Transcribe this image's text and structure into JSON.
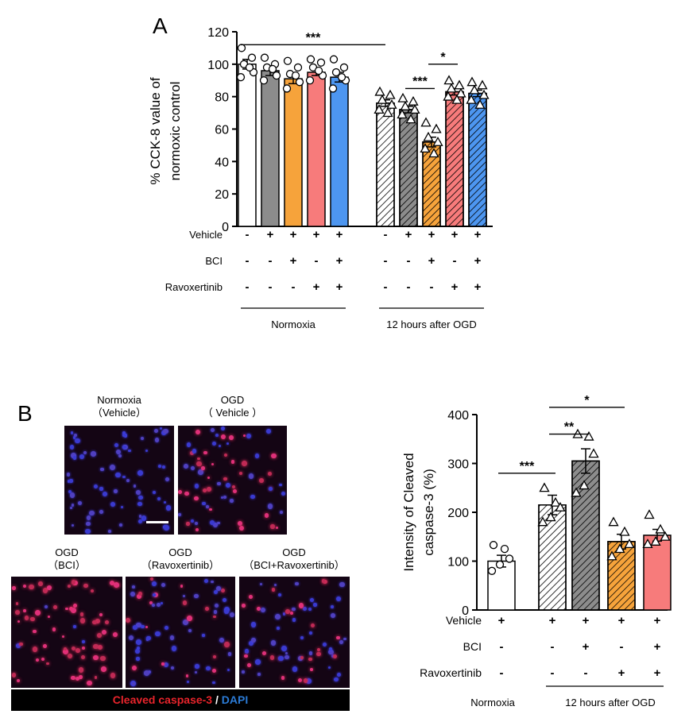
{
  "panel_labels": {
    "a": "A",
    "b": "B"
  },
  "chart_data": [
    {
      "type": "bar",
      "ylabel_lines": [
        "% CCK-8 value of",
        "normoxic control"
      ],
      "ylim": [
        0,
        120
      ],
      "yticks": [
        0,
        20,
        40,
        60,
        80,
        100,
        120
      ],
      "groups": [
        {
          "label": "Normoxia",
          "bars": [
            0,
            1,
            2,
            3,
            4
          ]
        },
        {
          "label": "12 hours after OGD",
          "bars": [
            5,
            6,
            7,
            8,
            9
          ]
        }
      ],
      "bars": [
        {
          "mean": 100,
          "sem": 3,
          "color": "#ffffff",
          "hatch": false,
          "marker": "circle",
          "points": [
            110,
            104,
            100,
            95,
            92,
            98
          ]
        },
        {
          "mean": 96,
          "sem": 3,
          "color": "#8c8c8c",
          "hatch": false,
          "marker": "circle",
          "points": [
            104,
            100,
            98,
            93,
            90,
            97
          ]
        },
        {
          "mean": 91,
          "sem": 3,
          "color": "#f6a33b",
          "hatch": false,
          "marker": "circle",
          "points": [
            102,
            98,
            94,
            89,
            85,
            93
          ]
        },
        {
          "mean": 95,
          "sem": 2,
          "color": "#f77b7b",
          "hatch": false,
          "marker": "circle",
          "points": [
            103,
            101,
            98,
            93,
            90,
            96
          ]
        },
        {
          "mean": 92,
          "sem": 3,
          "color": "#4d96f0",
          "hatch": false,
          "marker": "circle",
          "points": [
            103,
            98,
            95,
            90,
            85,
            92
          ]
        },
        {
          "mean": 76,
          "sem": 2,
          "color": "#ffffff",
          "hatch": true,
          "marker": "triangle",
          "points": [
            83,
            81,
            78,
            75,
            72,
            70
          ]
        },
        {
          "mean": 72,
          "sem": 2,
          "color": "#8c8c8c",
          "hatch": true,
          "marker": "triangle",
          "points": [
            79,
            77,
            74,
            72,
            69,
            66
          ]
        },
        {
          "mean": 52,
          "sem": 3,
          "color": "#f6a33b",
          "hatch": true,
          "marker": "triangle",
          "points": [
            64,
            60,
            55,
            52,
            48,
            45
          ]
        },
        {
          "mean": 83,
          "sem": 2,
          "color": "#f77b7b",
          "hatch": true,
          "marker": "triangle",
          "points": [
            90,
            87,
            85,
            82,
            80,
            78
          ]
        },
        {
          "mean": 82,
          "sem": 2,
          "color": "#4d96f0",
          "hatch": true,
          "marker": "triangle",
          "points": [
            89,
            87,
            84,
            81,
            78,
            75
          ]
        }
      ],
      "conditions": [
        {
          "label": "Vehicle",
          "values": [
            "-",
            "+",
            "+",
            "+",
            "+",
            "-",
            "+",
            "+",
            "+",
            "+"
          ]
        },
        {
          "label": "BCI",
          "values": [
            "-",
            "-",
            "+",
            "-",
            "+",
            "-",
            "-",
            "+",
            "-",
            "+"
          ]
        },
        {
          "label": "Ravoxertinib",
          "values": [
            "-",
            "-",
            "-",
            "+",
            "+",
            "-",
            "-",
            "-",
            "+",
            "+"
          ]
        }
      ],
      "significance": [
        {
          "from": 0,
          "to": 5,
          "y": 112,
          "label": "***"
        },
        {
          "from": 6,
          "to": 7,
          "y": 85,
          "label": "***"
        },
        {
          "from": 7,
          "to": 8,
          "y": 100,
          "label": "*"
        }
      ]
    },
    {
      "type": "bar",
      "ylabel_lines": [
        "Intensity of Cleaved",
        "caspase-3 (%)"
      ],
      "ylim": [
        0,
        400
      ],
      "yticks": [
        0,
        100,
        200,
        300,
        400
      ],
      "groups": [
        {
          "label": "Normoxia",
          "bars": [
            0
          ]
        },
        {
          "label": "12 hours after OGD",
          "bars": [
            1,
            2,
            3,
            4
          ]
        }
      ],
      "bars": [
        {
          "mean": 100,
          "sem": 12,
          "color": "#ffffff",
          "hatch": false,
          "marker": "circle",
          "points": [
            133,
            125,
            105,
            93,
            80
          ]
        },
        {
          "mean": 215,
          "sem": 20,
          "color": "#ffffff",
          "hatch": true,
          "marker": "triangle",
          "points": [
            250,
            220,
            210,
            190,
            180
          ]
        },
        {
          "mean": 305,
          "sem": 25,
          "color": "#8c8c8c",
          "hatch": true,
          "marker": "triangle",
          "points": [
            360,
            355,
            320,
            255,
            240
          ]
        },
        {
          "mean": 140,
          "sem": 15,
          "color": "#f6a33b",
          "hatch": true,
          "marker": "triangle",
          "points": [
            180,
            160,
            135,
            125,
            110
          ]
        },
        {
          "mean": 153,
          "sem": 12,
          "color": "#f77b7b",
          "hatch": false,
          "marker": "triangle",
          "points": [
            195,
            165,
            150,
            140,
            135
          ]
        }
      ],
      "conditions": [
        {
          "label": "Vehicle",
          "values": [
            "+",
            "+",
            "+",
            "+",
            "+"
          ]
        },
        {
          "label": "BCI",
          "values": [
            "-",
            "-",
            "+",
            "-",
            "+"
          ]
        },
        {
          "label": "Ravoxertinib",
          "values": [
            "-",
            "-",
            "-",
            "+",
            "+"
          ]
        }
      ],
      "significance": [
        {
          "from": 0,
          "to": 1,
          "y": 280,
          "label": "***"
        },
        {
          "from": 1,
          "to": 2,
          "y": 360,
          "label": "**"
        },
        {
          "from": 1,
          "to": 3,
          "y": 415,
          "label": "*"
        }
      ]
    }
  ],
  "micrographs": [
    {
      "title": "Normoxia\n（Vehicle）",
      "density": 0.0,
      "seed": 3
    },
    {
      "title": "OGD\n（ Vehicle ）",
      "density": 0.45,
      "seed": 7
    },
    {
      "title": "OGD\n（BCI）",
      "density": 0.9,
      "seed": 11
    },
    {
      "title": "OGD\n（Ravoxertinib）",
      "density": 0.35,
      "seed": 19
    },
    {
      "title": "OGD\n（BCI+Ravoxertinib）",
      "density": 0.4,
      "seed": 23
    }
  ],
  "caption": {
    "marker": "Cleaved caspase-3",
    "slash": " / ",
    "stain": "DAPI"
  },
  "colors": {
    "bar_white": "#ffffff",
    "bar_gray": "#8c8c8c",
    "bar_orange": "#f6a33b",
    "bar_pink": "#f77b7b",
    "bar_blue": "#4d96f0",
    "caption_red": "#e8242b",
    "caption_blue": "#2b7bd6"
  }
}
